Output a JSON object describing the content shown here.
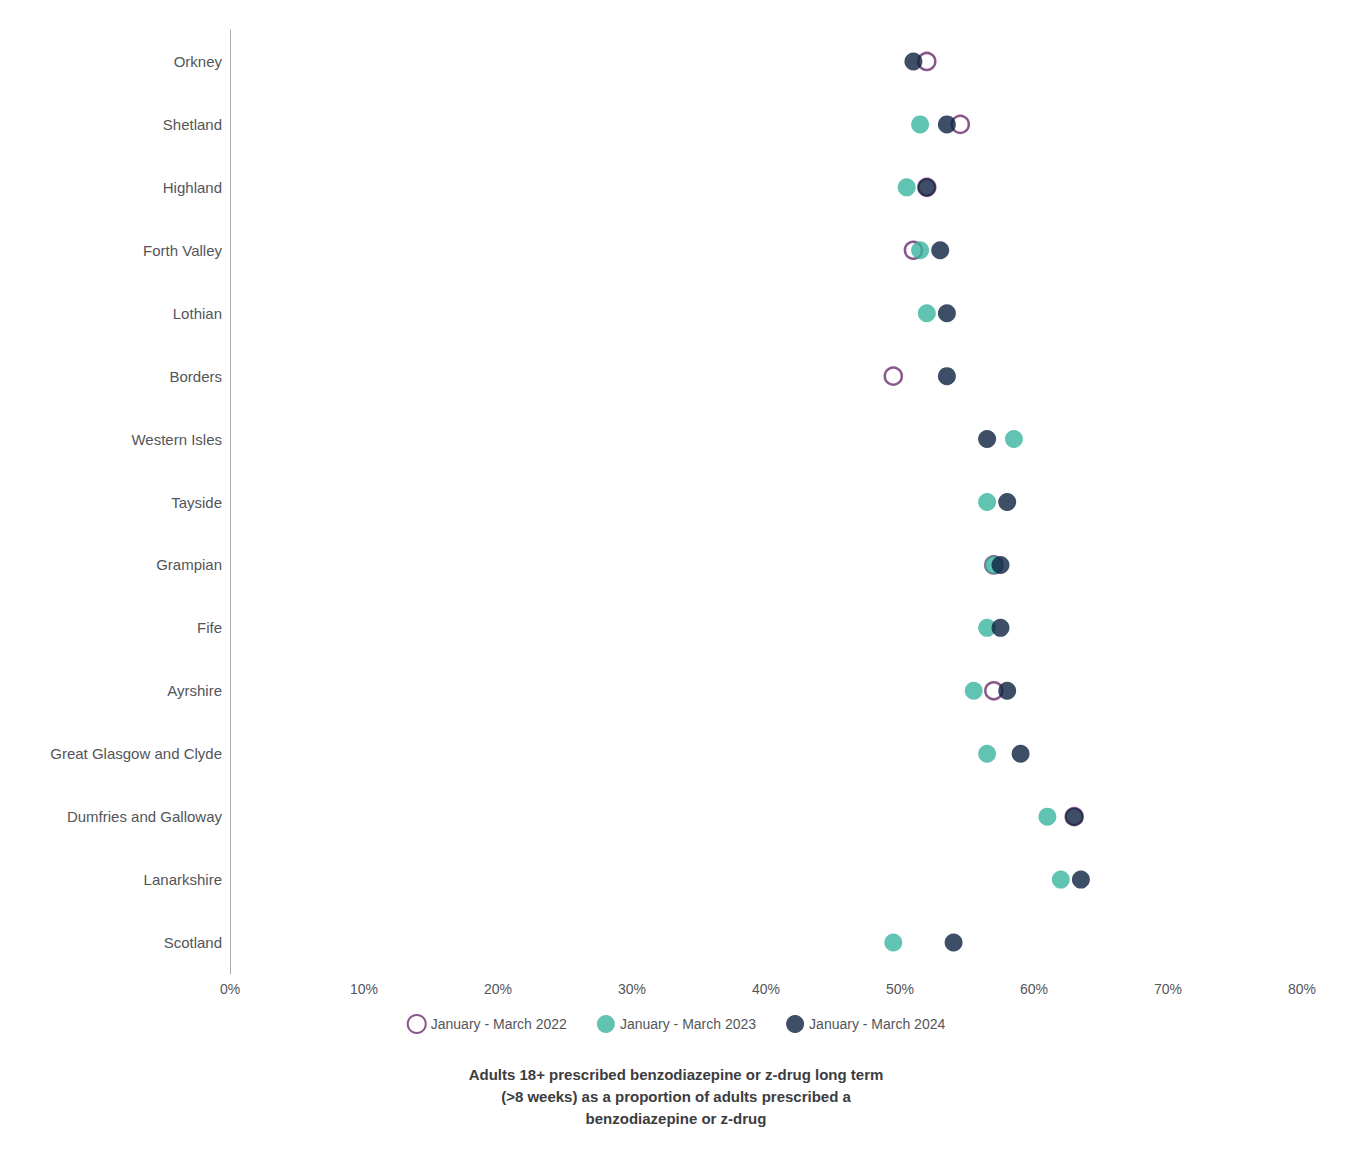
{
  "chart_data": {
    "type": "scatter",
    "orientation": "horizontal",
    "title": "Adults 18+ prescribed benzodiazepine or z-drug long term\n(>8 weeks) as a proportion of adults prescribed a\nbenzodiazepine or z-drug",
    "categories": [
      "Scotland",
      "Lanarkshire",
      "Dumfries and Galloway",
      "Great Glasgow and Clyde",
      "Ayrshire",
      "Fife",
      "Grampian",
      "Tayside",
      "Western Isles",
      "Borders",
      "Lothian",
      "Forth Valley",
      "Highland",
      "Shetland",
      "Orkney"
    ],
    "series": [
      {
        "name": "January - March 2022",
        "color": "#6b2d6b",
        "marker": "open_circle",
        "values": [
          null,
          null,
          63.0,
          null,
          57.0,
          null,
          57.0,
          null,
          null,
          49.5,
          null,
          51.0,
          52.0,
          54.5,
          52.0
        ]
      },
      {
        "name": "January - March 2023",
        "color": "#3ab5a0",
        "marker": "circle",
        "values": [
          49.5,
          62.0,
          61.0,
          56.5,
          55.5,
          56.5,
          57.0,
          56.5,
          58.5,
          null,
          52.0,
          51.5,
          50.5,
          51.5,
          null
        ]
      },
      {
        "name": "January - March 2024",
        "color": "#0d2240",
        "marker": "circle",
        "values": [
          54.0,
          63.5,
          63.0,
          59.0,
          58.0,
          57.5,
          57.5,
          58.0,
          56.5,
          53.5,
          53.5,
          53.0,
          52.0,
          53.5,
          51.0
        ]
      }
    ],
    "xlim": [
      0,
      80
    ],
    "xticks": [
      {
        "value": 0,
        "label": "0%"
      },
      {
        "value": 10,
        "label": "10%"
      },
      {
        "value": 20,
        "label": "20%"
      },
      {
        "value": 30,
        "label": "30%"
      },
      {
        "value": 40,
        "label": "40%"
      },
      {
        "value": 50,
        "label": "50%"
      },
      {
        "value": 60,
        "label": "60%"
      },
      {
        "value": 70,
        "label": "70%"
      },
      {
        "value": 80,
        "label": "80%"
      }
    ],
    "grid": false,
    "legend": "bottom"
  }
}
